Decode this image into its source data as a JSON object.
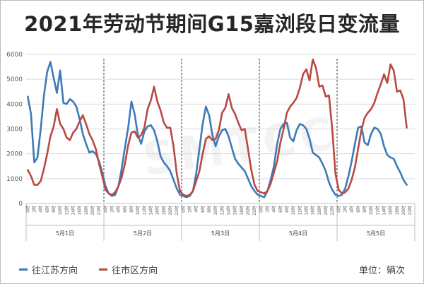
{
  "chart_data": {
    "type": "line",
    "title": "2021年劳动节期间G15嘉浏段日变流量",
    "ylim": [
      0,
      6000
    ],
    "yticks": [
      0,
      1000,
      2000,
      3000,
      4000,
      5000,
      6000
    ],
    "hour_labels": [
      "0时",
      "2时",
      "4时",
      "6时",
      "8时",
      "10时",
      "12时",
      "14时",
      "16时",
      "18时",
      "20时",
      "22时"
    ],
    "days": [
      "5月1日",
      "5月2日",
      "5月3日",
      "5月4日",
      "5月5日"
    ],
    "series": [
      {
        "name": "往江苏方向",
        "color": "#3d7ab8",
        "values": [
          4300,
          3600,
          1650,
          1850,
          3000,
          4350,
          5300,
          5700,
          5050,
          4450,
          5350,
          4050,
          4000,
          4200,
          4100,
          3900,
          3400,
          2800,
          2400,
          2050,
          2100,
          2000,
          1700,
          1250,
          700,
          400,
          300,
          350,
          700,
          1400,
          2250,
          3050,
          4100,
          3600,
          2750,
          2400,
          2900,
          3100,
          3150,
          2950,
          2500,
          1900,
          1650,
          1500,
          1300,
          950,
          600,
          350,
          300,
          250,
          300,
          500,
          1200,
          2200,
          3200,
          3900,
          3550,
          2750,
          2300,
          2700,
          2950,
          3000,
          2700,
          2250,
          1800,
          1600,
          1450,
          1300,
          1000,
          700,
          500,
          350,
          300,
          250,
          500,
          950,
          1500,
          2400,
          3000,
          3200,
          3250,
          2650,
          2500,
          2950,
          3200,
          3150,
          3000,
          2600,
          2050,
          1950,
          1850,
          1600,
          1300,
          850,
          550,
          350,
          300,
          350,
          600,
          1100,
          1700,
          2400,
          3050,
          3100,
          2450,
          2350,
          2800,
          3050,
          3000,
          2800,
          2300,
          1950,
          1850,
          1800,
          1500,
          1250,
          950,
          750
        ]
      },
      {
        "name": "往市区方向",
        "color": "#b84a43",
        "values": [
          1350,
          1100,
          750,
          750,
          900,
          1400,
          2000,
          2700,
          3100,
          3800,
          3200,
          3000,
          2650,
          2550,
          2850,
          3000,
          3300,
          3550,
          3200,
          2800,
          2550,
          2200,
          1600,
          1100,
          550,
          400,
          350,
          450,
          700,
          1050,
          1600,
          2350,
          2850,
          2900,
          2650,
          2750,
          3050,
          3800,
          4150,
          4700,
          4100,
          3750,
          3250,
          3050,
          3050,
          2300,
          1200,
          500,
          350,
          300,
          350,
          500,
          900,
          1300,
          2000,
          2600,
          2700,
          2550,
          2600,
          2950,
          3650,
          3850,
          4400,
          3850,
          3600,
          3250,
          2950,
          3000,
          2200,
          1350,
          750,
          500,
          450,
          400,
          500,
          800,
          1250,
          1700,
          2450,
          3000,
          3650,
          3900,
          4050,
          4250,
          4650,
          5200,
          5400,
          4950,
          5800,
          5450,
          4700,
          4750,
          4300,
          4350,
          3000,
          1200,
          550,
          400,
          450,
          600,
          950,
          1450,
          2200,
          2950,
          3450,
          3650,
          3800,
          4050,
          4450,
          4800,
          5200,
          4850,
          5600,
          5350,
          4500,
          4550,
          4200,
          3050
        ]
      }
    ],
    "watermark": "SMTCC",
    "legend_position": "bottom-left",
    "unit_label": "单位：辆次"
  }
}
